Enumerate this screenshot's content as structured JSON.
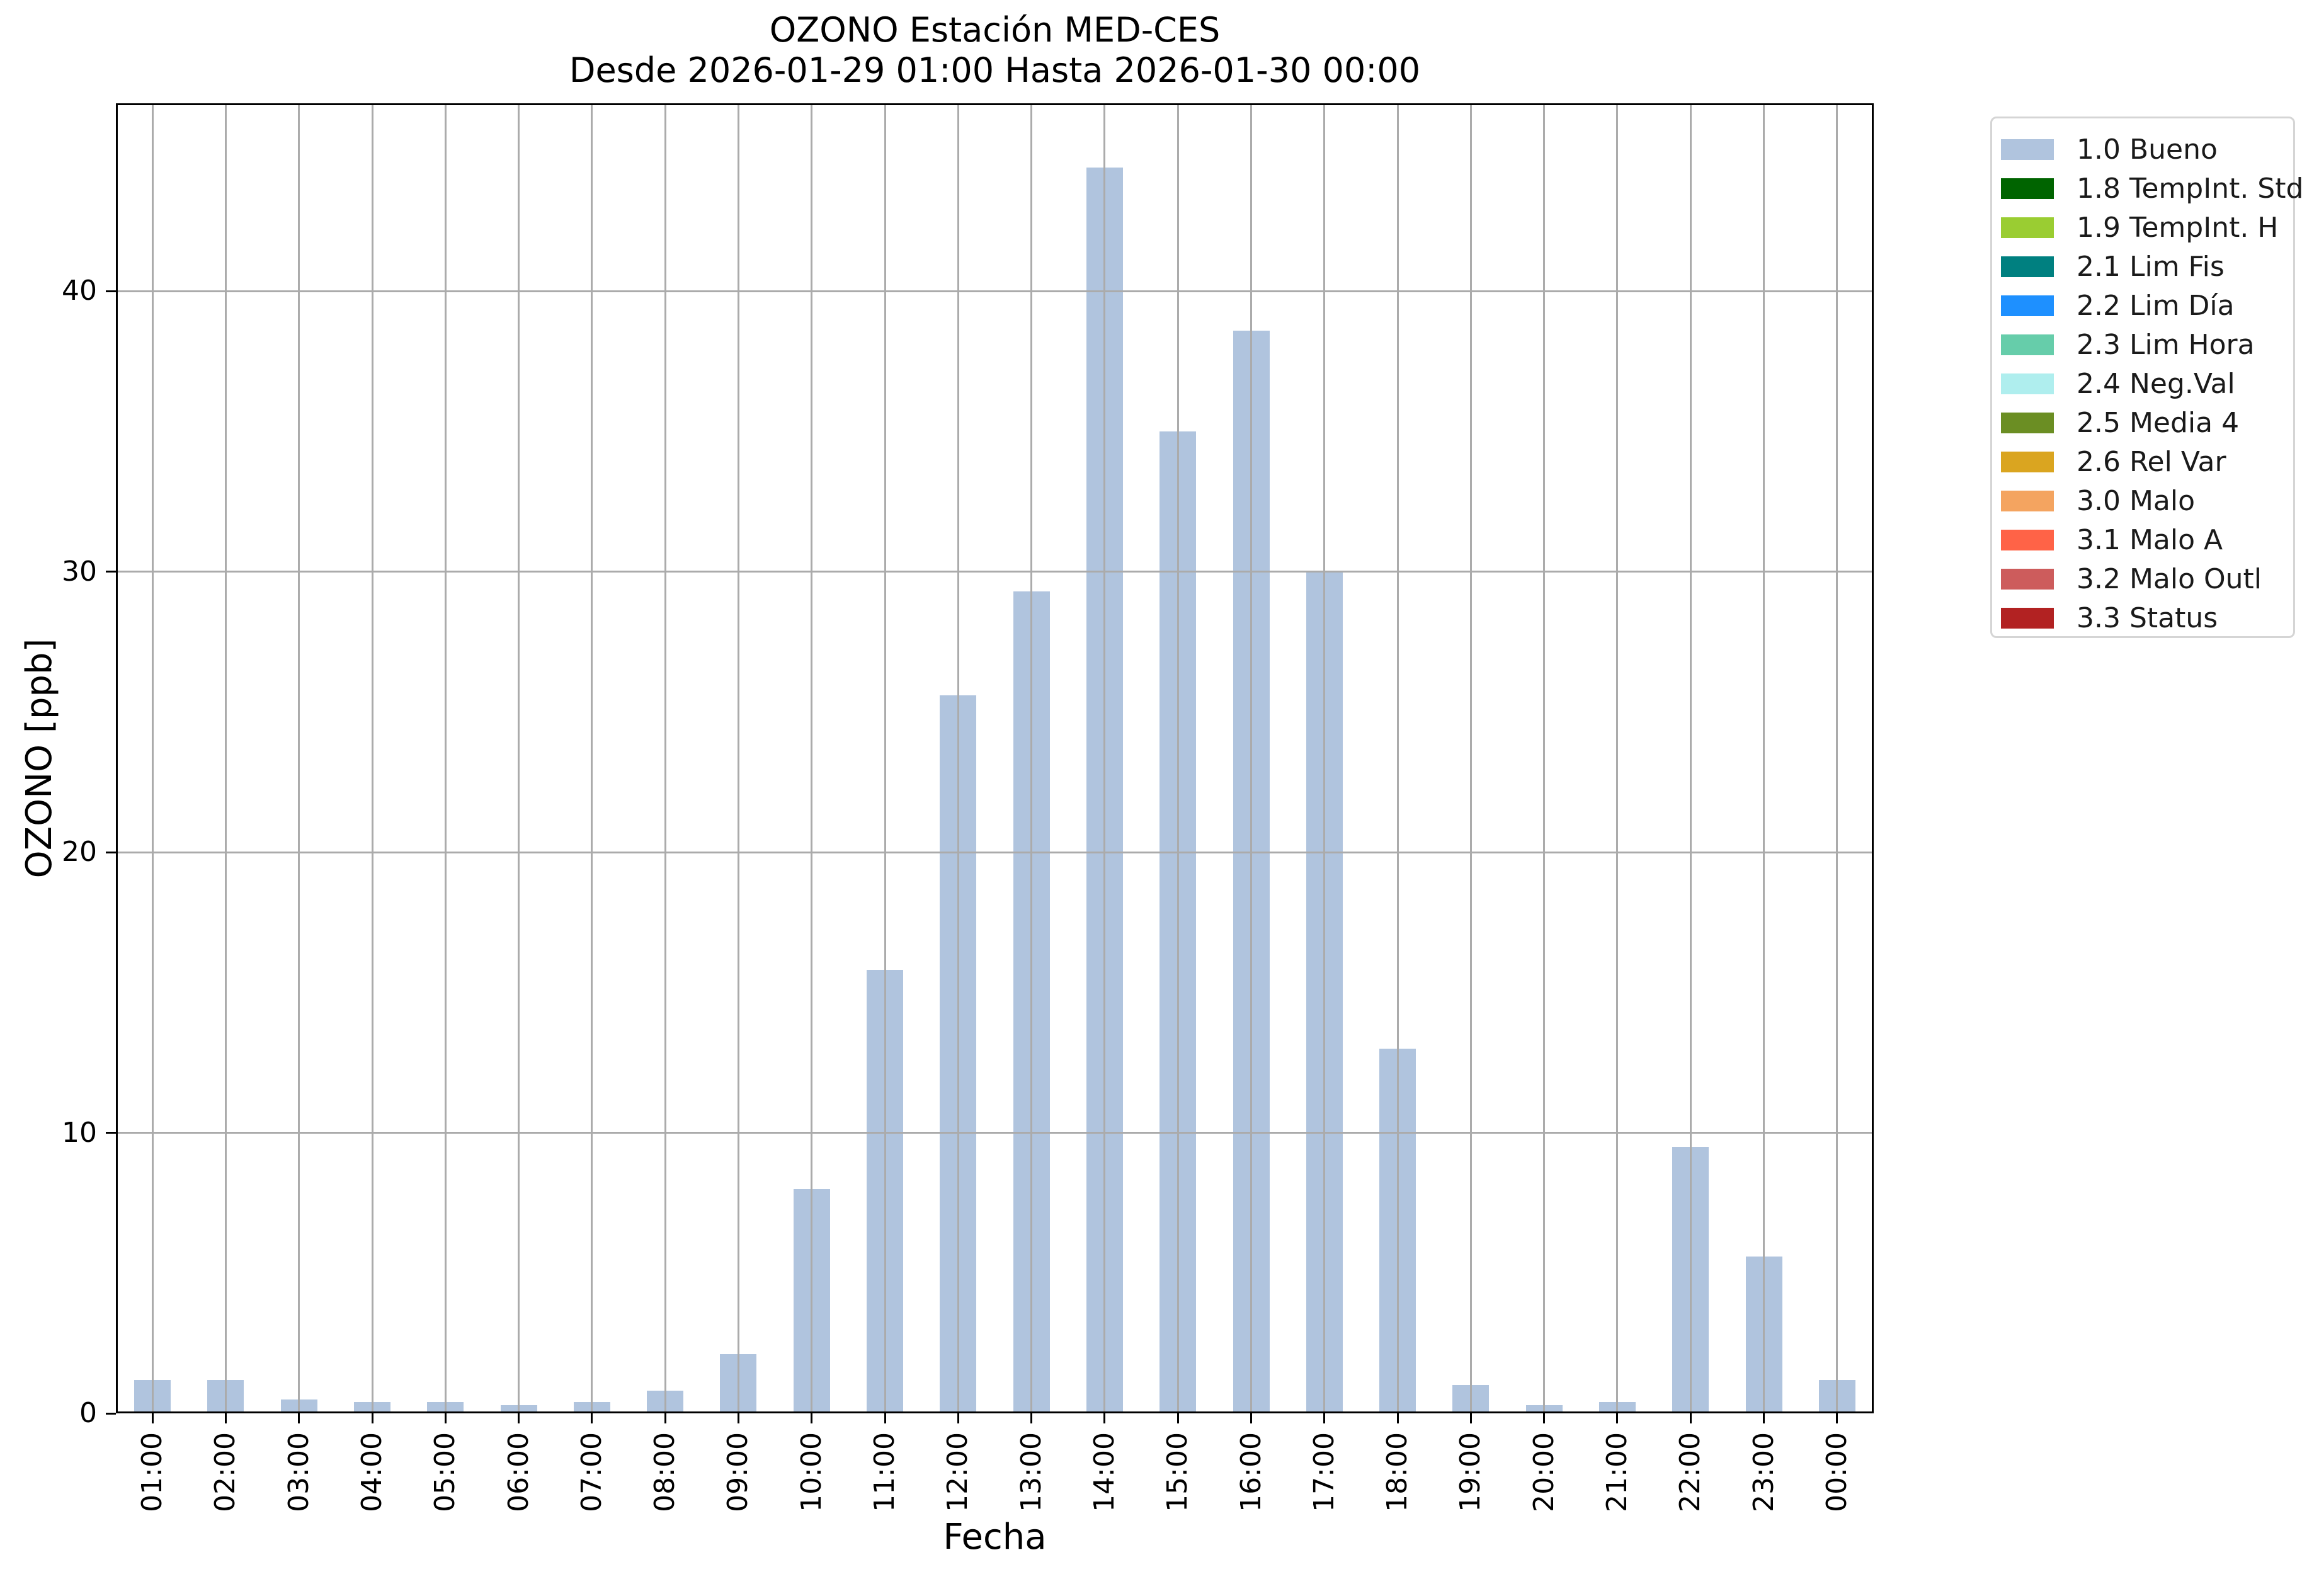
{
  "chart_data": {
    "type": "bar",
    "title_line1": "OZONO Estación MED-CES",
    "title_line2": "Desde 2026-01-29 01:00 Hasta 2026-01-30 00:00",
    "xlabel": "Fecha",
    "ylabel": "OZONO [ppb]",
    "categories": [
      "01:00",
      "02:00",
      "03:00",
      "04:00",
      "05:00",
      "06:00",
      "07:00",
      "08:00",
      "09:00",
      "10:00",
      "11:00",
      "12:00",
      "13:00",
      "14:00",
      "15:00",
      "16:00",
      "17:00",
      "18:00",
      "19:00",
      "20:00",
      "21:00",
      "22:00",
      "23:00",
      "00:00"
    ],
    "series": [
      {
        "name": "1.0 Bueno",
        "values": [
          1.2,
          1.2,
          0.5,
          0.4,
          0.4,
          0.3,
          0.4,
          0.8,
          2.1,
          8.0,
          15.8,
          25.6,
          29.3,
          44.4,
          35.0,
          38.6,
          30.0,
          13.0,
          1.0,
          0.3,
          0.4,
          9.5,
          5.6,
          1.2
        ]
      }
    ],
    "bar_color": "#B0C4DE",
    "ylim": [
      0,
      46.7
    ],
    "yticks": [
      0,
      10,
      20,
      30,
      40
    ],
    "grid": true,
    "grid_above_bars": true,
    "legend_position": "outside upper right",
    "legend": [
      {
        "label": "1.0 Bueno",
        "color": "#B0C4DE"
      },
      {
        "label": "1.8 TempInt. Std",
        "color": "#006400"
      },
      {
        "label": "1.9 TempInt. H",
        "color": "#9ACD32"
      },
      {
        "label": "2.1 Lim Fis",
        "color": "#008080"
      },
      {
        "label": "2.2 Lim Día",
        "color": "#1E90FF"
      },
      {
        "label": "2.3 Lim Hora",
        "color": "#66CDAA"
      },
      {
        "label": "2.4 Neg.Val",
        "color": "#AFEEEE"
      },
      {
        "label": "2.5 Media 4",
        "color": "#6B8E23"
      },
      {
        "label": "2.6 Rel Var",
        "color": "#DAA520"
      },
      {
        "label": "3.0 Malo",
        "color": "#F4A460"
      },
      {
        "label": "3.1 Malo A",
        "color": "#FF6347"
      },
      {
        "label": "3.2 Malo Outl",
        "color": "#CD5C5C"
      },
      {
        "label": "3.3 Status",
        "color": "#B22222"
      }
    ]
  },
  "colors": {
    "background": "#FFFFFF",
    "axis": "#000000",
    "grid": "#ABABAB",
    "legend_border": "#D5D5D5",
    "text": "#000000"
  }
}
